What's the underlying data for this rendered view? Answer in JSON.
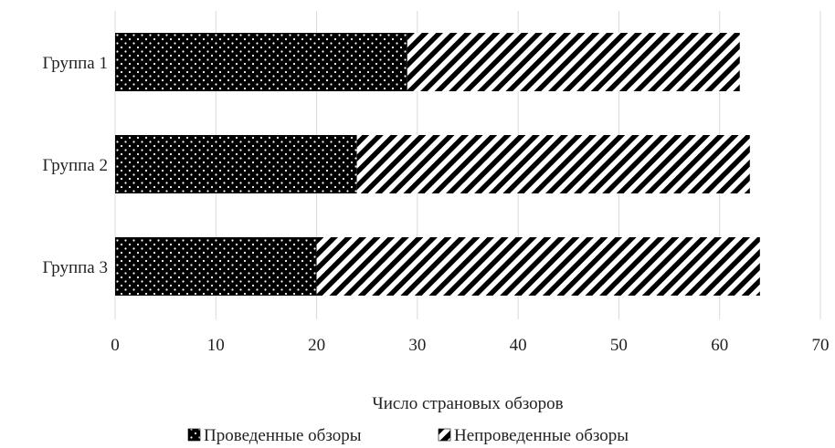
{
  "chart_data": {
    "type": "bar",
    "orientation": "horizontal",
    "stacked": true,
    "categories": [
      "Группа 1",
      "Группа 2",
      "Группа 3"
    ],
    "series": [
      {
        "name": "Проведенные обзоры",
        "values": [
          29,
          24,
          20
        ],
        "pattern": "dots"
      },
      {
        "name": "Непроведенные обзоры",
        "values": [
          33,
          39,
          44
        ],
        "pattern": "diagonal-stripes"
      }
    ],
    "xlabel": "Число страновых обзоров",
    "ylabel": "",
    "xlim": [
      0,
      70
    ],
    "xticks": [
      "0",
      "10",
      "20",
      "30",
      "40",
      "50",
      "60",
      "70"
    ],
    "grid": "vertical",
    "legend": "bottom"
  },
  "colors": {
    "bar_fill": "#000000",
    "pattern_mark": "#ffffff",
    "grid": "#d9d9d9"
  }
}
